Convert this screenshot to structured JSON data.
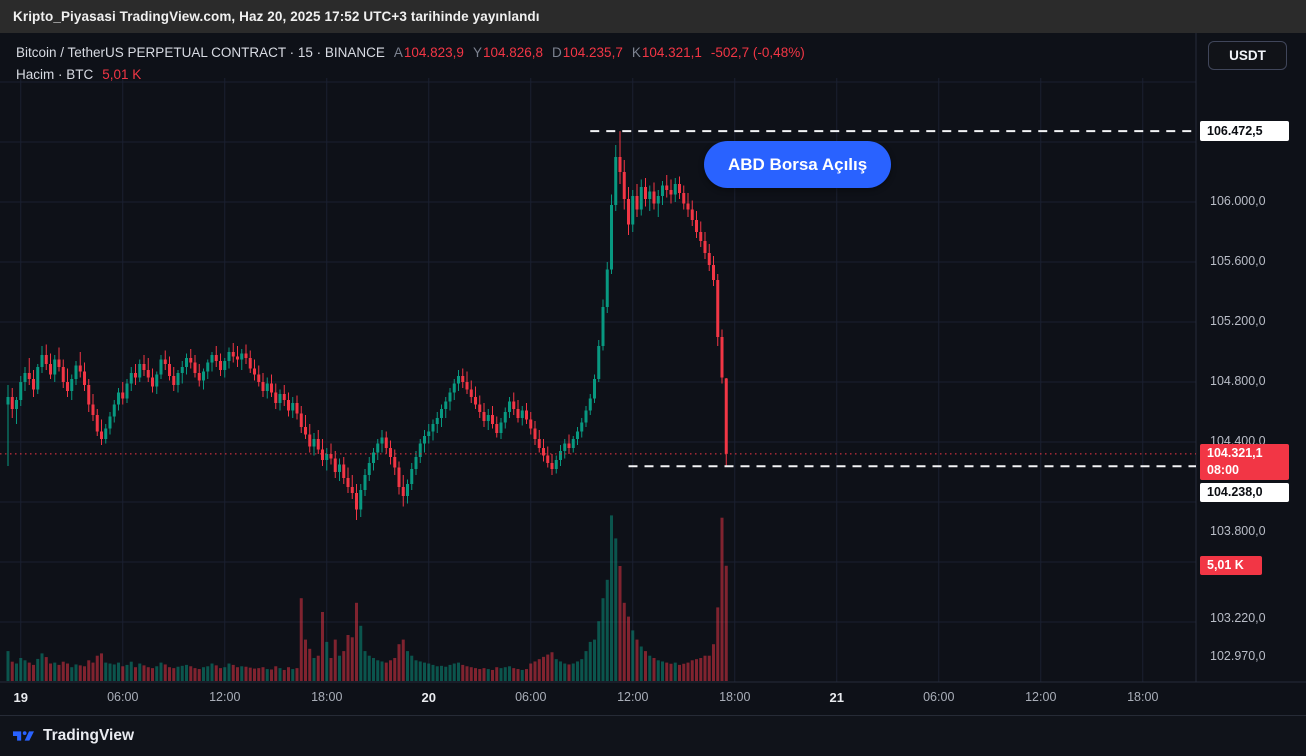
{
  "publish_bar": {
    "text": "Kripto_Piyasasi TradingView.com, Haz 20, 2025 17:52 UTC+3 tarihinde yayınlandı"
  },
  "header": {
    "title": "Bitcoin / TetherUS PERPETUAL CONTRACT · 15 · BINANCE",
    "ohlc": [
      {
        "label": "A",
        "value": "104.823,9"
      },
      {
        "label": "Y",
        "value": "104.826,8"
      },
      {
        "label": "D",
        "value": "104.235,7"
      },
      {
        "label": "K",
        "value": "104.321,1"
      }
    ],
    "change": "-502,7 (-0,48%)",
    "volume_label": "Hacim · BTC",
    "volume_value": "5,01 K",
    "currency_button": "USDT"
  },
  "annotation": {
    "text": "ABD Borsa Açılış",
    "color": "#2962ff"
  },
  "price_axis": {
    "labels": [
      {
        "text": "106.000,0",
        "price": 106000
      },
      {
        "text": "105.600,0",
        "price": 105600
      },
      {
        "text": "105.200,0",
        "price": 105200
      },
      {
        "text": "104.800,0",
        "price": 104800
      },
      {
        "text": "104.400,0",
        "price": 104400
      },
      {
        "text": "103.800,0",
        "price": 103800
      },
      {
        "text": "103.220,0",
        "price": 103220
      },
      {
        "text": "102.970,0",
        "price": 102970
      }
    ],
    "badges": [
      {
        "text": "106.472,5",
        "style": "white",
        "price": 106472.5
      },
      {
        "text": "104.321,1",
        "sub": "08:00",
        "style": "red",
        "price": 104321.1
      },
      {
        "text": "104.238,0",
        "style": "white",
        "price": 104238.0
      },
      {
        "text": "5,01 K",
        "style": "red",
        "narrow": true,
        "volume": 5010
      }
    ]
  },
  "time_axis": {
    "labels": [
      {
        "text": "19",
        "index": 3,
        "major": true
      },
      {
        "text": "06:00",
        "index": 27
      },
      {
        "text": "12:00",
        "index": 51
      },
      {
        "text": "18:00",
        "index": 75
      },
      {
        "text": "20",
        "index": 99,
        "major": true
      },
      {
        "text": "06:00",
        "index": 123
      },
      {
        "text": "12:00",
        "index": 147
      },
      {
        "text": "18:00",
        "index": 171
      },
      {
        "text": "21",
        "index": 195,
        "major": true
      },
      {
        "text": "06:00",
        "index": 219
      },
      {
        "text": "12:00",
        "index": 243
      },
      {
        "text": "18:00",
        "index": 267
      }
    ]
  },
  "footer": {
    "brand": "TradingView"
  },
  "chart_data": {
    "type": "candlestick",
    "symbol": "Bitcoin / TetherUS Perpetual",
    "exchange": "BINANCE",
    "interval_minutes": 15,
    "colors": {
      "up": "#089981",
      "down": "#f23645",
      "accent": "#2962ff",
      "last_price": "#f23645"
    },
    "price_axis_range": [
      102850,
      106700
    ],
    "current_bar": {
      "open": 104823.9,
      "high": 104826.8,
      "low": 104235.7,
      "close": 104321.1,
      "change": -502.7,
      "change_pct": -0.48,
      "volume_btc": 5010,
      "bar_countdown": "08:00"
    },
    "lines": {
      "high": {
        "price": 106472.5,
        "start_index": 137
      },
      "support": {
        "price": 104238.0,
        "start_index": 146
      },
      "last": {
        "price": 104321.1
      }
    },
    "grid": {
      "h_prices": [
        106800,
        106400,
        106000,
        105600,
        105200,
        104800,
        104400,
        104000,
        103600,
        103200
      ]
    },
    "candle_format": [
      "open",
      "high",
      "low",
      "close",
      "volume"
    ],
    "candles": [
      [
        104650,
        104780,
        104240,
        104700,
        1300
      ],
      [
        104700,
        104760,
        104560,
        104620,
        840
      ],
      [
        104620,
        104700,
        104520,
        104680,
        760
      ],
      [
        104680,
        104840,
        104640,
        104800,
        1000
      ],
      [
        104800,
        104900,
        104740,
        104860,
        900
      ],
      [
        104860,
        104960,
        104780,
        104820,
        800
      ],
      [
        104820,
        104880,
        104700,
        104750,
        700
      ],
      [
        104750,
        104920,
        104720,
        104900,
        960
      ],
      [
        104900,
        105040,
        104860,
        104980,
        1200
      ],
      [
        104980,
        105050,
        104880,
        104920,
        1040
      ],
      [
        104920,
        104990,
        104820,
        104850,
        760
      ],
      [
        104850,
        104980,
        104800,
        104950,
        800
      ],
      [
        104950,
        105030,
        104870,
        104900,
        700
      ],
      [
        104900,
        104950,
        104760,
        104800,
        840
      ],
      [
        104800,
        104890,
        104700,
        104740,
        760
      ],
      [
        104740,
        104850,
        104680,
        104820,
        600
      ],
      [
        104820,
        104940,
        104780,
        104910,
        720
      ],
      [
        104910,
        105000,
        104830,
        104870,
        680
      ],
      [
        104870,
        104930,
        104740,
        104780,
        640
      ],
      [
        104780,
        104820,
        104600,
        104650,
        900
      ],
      [
        104650,
        104720,
        104540,
        104580,
        800
      ],
      [
        104580,
        104620,
        104440,
        104470,
        1100
      ],
      [
        104470,
        104550,
        104380,
        104420,
        1200
      ],
      [
        104420,
        104520,
        104390,
        104490,
        800
      ],
      [
        104490,
        104600,
        104450,
        104570,
        760
      ],
      [
        104570,
        104680,
        104530,
        104650,
        720
      ],
      [
        104650,
        104760,
        104610,
        104730,
        800
      ],
      [
        104730,
        104800,
        104650,
        104690,
        640
      ],
      [
        104690,
        104820,
        104660,
        104790,
        700
      ],
      [
        104790,
        104900,
        104740,
        104860,
        840
      ],
      [
        104860,
        104920,
        104780,
        104830,
        600
      ],
      [
        104830,
        104950,
        104800,
        104920,
        760
      ],
      [
        104920,
        104980,
        104840,
        104880,
        680
      ],
      [
        104880,
        104960,
        104800,
        104830,
        600
      ],
      [
        104830,
        104890,
        104730,
        104770,
        560
      ],
      [
        104770,
        104870,
        104720,
        104850,
        640
      ],
      [
        104850,
        104980,
        104820,
        104950,
        800
      ],
      [
        104950,
        105010,
        104880,
        104920,
        720
      ],
      [
        104920,
        104970,
        104810,
        104840,
        600
      ],
      [
        104840,
        104900,
        104740,
        104780,
        560
      ],
      [
        104780,
        104880,
        104730,
        104860,
        620
      ],
      [
        104860,
        104940,
        104790,
        104900,
        660
      ],
      [
        104900,
        104990,
        104850,
        104960,
        700
      ],
      [
        104960,
        105020,
        104890,
        104930,
        640
      ],
      [
        104930,
        104980,
        104830,
        104860,
        560
      ],
      [
        104860,
        104920,
        104770,
        104810,
        520
      ],
      [
        104810,
        104890,
        104750,
        104870,
        600
      ],
      [
        104870,
        104950,
        104820,
        104930,
        640
      ],
      [
        104930,
        105000,
        104870,
        104980,
        760
      ],
      [
        104980,
        105040,
        104900,
        104940,
        680
      ],
      [
        104940,
        104990,
        104840,
        104880,
        560
      ],
      [
        104880,
        104960,
        104830,
        104940,
        600
      ],
      [
        104940,
        105030,
        104890,
        105000,
        760
      ],
      [
        105000,
        105060,
        104930,
        104970,
        700
      ],
      [
        104970,
        105040,
        104900,
        104950,
        600
      ],
      [
        104950,
        105020,
        104880,
        104990,
        640
      ],
      [
        104990,
        105050,
        104920,
        104960,
        620
      ],
      [
        104960,
        105010,
        104860,
        104890,
        580
      ],
      [
        104890,
        104950,
        104810,
        104850,
        540
      ],
      [
        104850,
        104910,
        104770,
        104800,
        560
      ],
      [
        104800,
        104860,
        104700,
        104740,
        600
      ],
      [
        104740,
        104830,
        104690,
        104790,
        520
      ],
      [
        104790,
        104850,
        104700,
        104730,
        500
      ],
      [
        104730,
        104790,
        104620,
        104660,
        640
      ],
      [
        104660,
        104750,
        104610,
        104720,
        560
      ],
      [
        104720,
        104780,
        104640,
        104680,
        480
      ],
      [
        104680,
        104730,
        104570,
        104610,
        600
      ],
      [
        104610,
        104700,
        104560,
        104660,
        520
      ],
      [
        104660,
        104710,
        104550,
        104590,
        560
      ],
      [
        104590,
        104640,
        104460,
        104500,
        3600
      ],
      [
        104500,
        104580,
        104420,
        104450,
        1800
      ],
      [
        104450,
        104520,
        104330,
        104370,
        1400
      ],
      [
        104370,
        104460,
        104310,
        104420,
        1000
      ],
      [
        104420,
        104480,
        104320,
        104350,
        1100
      ],
      [
        104350,
        104420,
        104240,
        104280,
        3000
      ],
      [
        104280,
        104360,
        104210,
        104320,
        1700
      ],
      [
        104320,
        104390,
        104250,
        104290,
        1000
      ],
      [
        104290,
        104340,
        104160,
        104200,
        1800
      ],
      [
        104200,
        104290,
        104140,
        104250,
        1100
      ],
      [
        104250,
        104300,
        104120,
        104160,
        1300
      ],
      [
        104160,
        104230,
        104060,
        104100,
        2000
      ],
      [
        104100,
        104180,
        104020,
        104060,
        1900
      ],
      [
        104060,
        104120,
        103880,
        103950,
        3400
      ],
      [
        103950,
        104120,
        103900,
        104080,
        2400
      ],
      [
        104080,
        104220,
        104040,
        104180,
        1300
      ],
      [
        104180,
        104300,
        104140,
        104260,
        1100
      ],
      [
        104260,
        104360,
        104210,
        104330,
        1000
      ],
      [
        104330,
        104420,
        104280,
        104390,
        900
      ],
      [
        104390,
        104480,
        104330,
        104430,
        850
      ],
      [
        104430,
        104470,
        104320,
        104360,
        800
      ],
      [
        104360,
        104410,
        104250,
        104300,
        900
      ],
      [
        104300,
        104350,
        104180,
        104230,
        1000
      ],
      [
        104230,
        104270,
        104050,
        104100,
        1600
      ],
      [
        104100,
        104180,
        103970,
        104040,
        1800
      ],
      [
        104040,
        104150,
        103990,
        104120,
        1300
      ],
      [
        104120,
        104260,
        104080,
        104220,
        1100
      ],
      [
        104220,
        104340,
        104180,
        104300,
        900
      ],
      [
        104300,
        104420,
        104260,
        104390,
        850
      ],
      [
        104390,
        104480,
        104330,
        104440,
        800
      ],
      [
        104440,
        104520,
        104390,
        104470,
        760
      ],
      [
        104470,
        104550,
        104410,
        104520,
        700
      ],
      [
        104520,
        104600,
        104460,
        104560,
        640
      ],
      [
        104560,
        104650,
        104500,
        104620,
        660
      ],
      [
        104620,
        104700,
        104560,
        104670,
        620
      ],
      [
        104670,
        104760,
        104610,
        104730,
        700
      ],
      [
        104730,
        104820,
        104680,
        104790,
        760
      ],
      [
        104790,
        104880,
        104740,
        104840,
        800
      ],
      [
        104840,
        104890,
        104760,
        104800,
        700
      ],
      [
        104800,
        104870,
        104720,
        104750,
        640
      ],
      [
        104750,
        104810,
        104660,
        104700,
        600
      ],
      [
        104700,
        104770,
        104620,
        104650,
        560
      ],
      [
        104650,
        104710,
        104560,
        104600,
        520
      ],
      [
        104600,
        104660,
        104500,
        104540,
        560
      ],
      [
        104540,
        104620,
        104480,
        104580,
        520
      ],
      [
        104580,
        104640,
        104490,
        104520,
        480
      ],
      [
        104520,
        104570,
        104430,
        104460,
        600
      ],
      [
        104460,
        104560,
        104420,
        104530,
        560
      ],
      [
        104530,
        104630,
        104490,
        104600,
        600
      ],
      [
        104600,
        104700,
        104560,
        104670,
        640
      ],
      [
        104670,
        104730,
        104580,
        104620,
        560
      ],
      [
        104620,
        104680,
        104530,
        104560,
        520
      ],
      [
        104560,
        104640,
        104510,
        104610,
        480
      ],
      [
        104610,
        104660,
        104520,
        104550,
        520
      ],
      [
        104550,
        104600,
        104450,
        104490,
        760
      ],
      [
        104490,
        104540,
        104380,
        104420,
        850
      ],
      [
        104420,
        104480,
        104330,
        104360,
        950
      ],
      [
        104360,
        104420,
        104270,
        104310,
        1050
      ],
      [
        104310,
        104370,
        104230,
        104260,
        1150
      ],
      [
        104260,
        104320,
        104180,
        104220,
        1250
      ],
      [
        104220,
        104310,
        104190,
        104280,
        950
      ],
      [
        104280,
        104380,
        104240,
        104340,
        850
      ],
      [
        104340,
        104420,
        104290,
        104390,
        760
      ],
      [
        104390,
        104450,
        104320,
        104360,
        720
      ],
      [
        104360,
        104440,
        104330,
        104420,
        760
      ],
      [
        104420,
        104500,
        104380,
        104470,
        850
      ],
      [
        104470,
        104560,
        104430,
        104530,
        950
      ],
      [
        104530,
        104640,
        104500,
        104610,
        1300
      ],
      [
        104610,
        104720,
        104580,
        104690,
        1700
      ],
      [
        104690,
        104850,
        104660,
        104820,
        1800
      ],
      [
        104820,
        105080,
        104800,
        105040,
        2600
      ],
      [
        105040,
        105350,
        105010,
        105300,
        3600
      ],
      [
        105300,
        105600,
        105260,
        105550,
        4400
      ],
      [
        105550,
        106050,
        105520,
        105980,
        7200
      ],
      [
        105980,
        106380,
        105940,
        106300,
        6200
      ],
      [
        106300,
        106472.5,
        106120,
        106200,
        5000
      ],
      [
        106200,
        106280,
        105950,
        106020,
        3400
      ],
      [
        106020,
        106100,
        105780,
        105850,
        2800
      ],
      [
        105850,
        106080,
        105800,
        106040,
        2200
      ],
      [
        106040,
        106120,
        105900,
        105950,
        1800
      ],
      [
        105950,
        106150,
        105910,
        106100,
        1500
      ],
      [
        106100,
        106160,
        105970,
        106020,
        1300
      ],
      [
        106020,
        106110,
        105940,
        106070,
        1100
      ],
      [
        106070,
        106130,
        105950,
        105990,
        1000
      ],
      [
        105990,
        106080,
        105900,
        106040,
        900
      ],
      [
        106040,
        106140,
        105980,
        106110,
        850
      ],
      [
        106110,
        106180,
        106030,
        106080,
        800
      ],
      [
        106080,
        106150,
        105990,
        106050,
        750
      ],
      [
        106050,
        106160,
        106000,
        106120,
        800
      ],
      [
        106120,
        106170,
        106020,
        106060,
        700
      ],
      [
        106060,
        106110,
        105950,
        105990,
        750
      ],
      [
        105990,
        106060,
        105900,
        105950,
        800
      ],
      [
        105950,
        106010,
        105840,
        105880,
        900
      ],
      [
        105880,
        105940,
        105760,
        105800,
        950
      ],
      [
        105800,
        105870,
        105700,
        105740,
        1000
      ],
      [
        105740,
        105800,
        105620,
        105660,
        1100
      ],
      [
        105660,
        105720,
        105540,
        105580,
        1100
      ],
      [
        105580,
        105640,
        105440,
        105480,
        1600
      ],
      [
        105480,
        105520,
        105040,
        105100,
        3200
      ],
      [
        105100,
        105150,
        104790,
        104830,
        7100
      ],
      [
        104823.9,
        104826.8,
        104235.7,
        104321.1,
        5010
      ]
    ]
  }
}
